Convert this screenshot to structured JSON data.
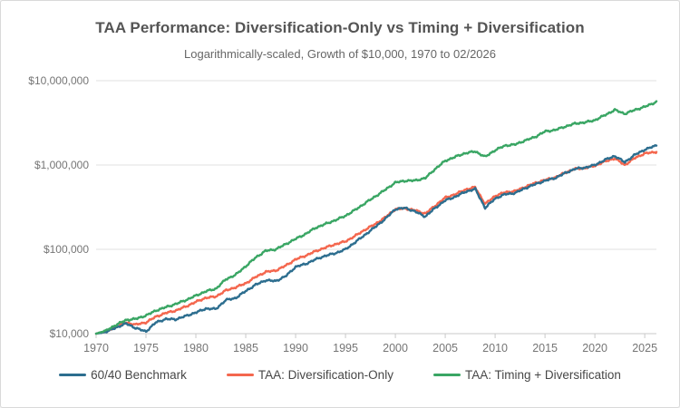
{
  "chart_data": {
    "type": "line",
    "title": "TAA Performance: Diversification-Only vs Timing + Diversification",
    "subtitle": "Logarithmically-scaled, Growth of $10,000, 1970 to 02/2026",
    "legend_position": "bottom",
    "grid": "horizontal",
    "y_axis": {
      "scale": "log",
      "range": [
        10000,
        10000000
      ],
      "ticks": [
        {
          "label": "$10,000",
          "value": 10000
        },
        {
          "label": "$100,000",
          "value": 100000
        },
        {
          "label": "$1,000,000",
          "value": 1000000
        },
        {
          "label": "$10,000,000",
          "value": 10000000
        }
      ]
    },
    "x_axis": {
      "range": [
        1970,
        2026.17
      ],
      "ticks": [
        1970,
        1975,
        1980,
        1985,
        1990,
        1995,
        2000,
        2005,
        2010,
        2015,
        2020,
        2025
      ]
    },
    "x": [
      1970,
      1971,
      1972,
      1973,
      1974,
      1975,
      1976,
      1977,
      1978,
      1979,
      1980,
      1981,
      1982,
      1983,
      1984,
      1985,
      1986,
      1987,
      1988,
      1989,
      1990,
      1991,
      1992,
      1993,
      1994,
      1995,
      1996,
      1997,
      1998,
      1999,
      2000,
      2001,
      2002,
      2003,
      2004,
      2005,
      2006,
      2007,
      2008,
      2009,
      2010,
      2011,
      2012,
      2013,
      2014,
      2015,
      2016,
      2017,
      2018,
      2019,
      2020,
      2021,
      2022,
      2023,
      2024,
      2025,
      2026,
      2026.17
    ],
    "series": [
      {
        "id": "60-40-benchmark",
        "name": "60/40 Benchmark",
        "color": "#2d6e8f",
        "values": [
          10000,
          10500,
          11800,
          13200,
          11600,
          10600,
          13600,
          14900,
          14800,
          16200,
          17800,
          19800,
          19600,
          25000,
          26500,
          32000,
          38000,
          43000,
          42000,
          48000,
          62000,
          67000,
          76000,
          84000,
          90000,
          100000,
          122000,
          150000,
          185000,
          230000,
          300000,
          310000,
          280000,
          245000,
          310000,
          380000,
          420000,
          480000,
          520000,
          310000,
          400000,
          450000,
          465000,
          530000,
          590000,
          650000,
          700000,
          800000,
          900000,
          930000,
          1000000,
          1150000,
          1280000,
          1080000,
          1320000,
          1520000,
          1680000,
          1700000
        ]
      },
      {
        "id": "taa-diversification-only",
        "name": "TAA: Diversification-Only",
        "color": "#f4674e",
        "values": [
          10000,
          10700,
          12000,
          13500,
          12800,
          13600,
          15900,
          17600,
          18800,
          21000,
          23800,
          26600,
          27500,
          32500,
          35500,
          39500,
          47000,
          54000,
          56000,
          64000,
          76000,
          84000,
          95000,
          105000,
          115000,
          124000,
          145000,
          172000,
          200000,
          240000,
          300000,
          305000,
          290000,
          265000,
          330000,
          410000,
          450000,
          510000,
          545000,
          345000,
          430000,
          475000,
          490000,
          550000,
          610000,
          665000,
          710000,
          810000,
          900000,
          920000,
          980000,
          1100000,
          1200000,
          1000000,
          1210000,
          1370000,
          1420000,
          1430000
        ]
      },
      {
        "id": "taa-timing-diversification",
        "name": "TAA: Timing + Diversification",
        "color": "#3aa664",
        "values": [
          10000,
          10900,
          12700,
          14500,
          15000,
          16400,
          18800,
          20600,
          22500,
          25000,
          28200,
          31800,
          34000,
          44000,
          50000,
          63000,
          80000,
          96000,
          100000,
          115000,
          133000,
          152000,
          180000,
          200000,
          222000,
          250000,
          295000,
          355000,
          425000,
          510000,
          620000,
          650000,
          655000,
          700000,
          900000,
          1120000,
          1250000,
          1380000,
          1450000,
          1250000,
          1500000,
          1700000,
          1750000,
          1950000,
          2150000,
          2500000,
          2600000,
          2850000,
          3100000,
          3200000,
          3400000,
          3900000,
          4500000,
          4050000,
          4500000,
          4900000,
          5500000,
          5700000
        ]
      }
    ],
    "colors": {
      "gridline": "#e2e2e2",
      "axis_line": "#c9c9c9",
      "axis_text": "#757575",
      "panel_border": "#d9d9d9",
      "background": "#ffffff"
    }
  }
}
